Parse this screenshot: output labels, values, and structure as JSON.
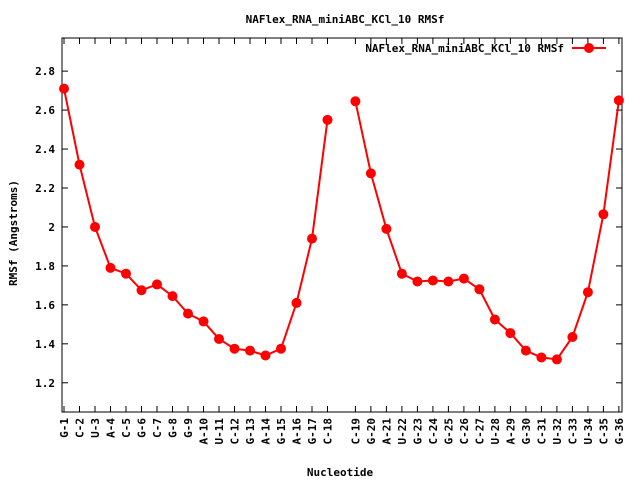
{
  "chart_data": {
    "type": "line",
    "title": "NAFlex_RNA_miniABC_KCl_10 RMSf",
    "xlabel": "Nucleotide",
    "ylabel": "RMSf (Angstroms)",
    "ylim": [
      1.05,
      2.97
    ],
    "yticks": [
      "1.2",
      "1.4",
      "1.6",
      "1.8",
      "2",
      "2.2",
      "2.4",
      "2.6",
      "2.8"
    ],
    "grid": false,
    "legend_position": "top-right",
    "series": [
      {
        "name": "NAFlex_RNA_miniABC_KCl_10 RMSf",
        "color": "#ff0000",
        "segments": [
          {
            "categories": [
              "G-1",
              "C-2",
              "U-3",
              "A-4",
              "C-5",
              "G-6",
              "C-7",
              "G-8",
              "G-9",
              "A-10",
              "U-11",
              "C-12",
              "G-13",
              "A-14",
              "G-15",
              "A-16",
              "G-17",
              "C-18"
            ],
            "values": [
              2.71,
              2.32,
              2.0,
              1.79,
              1.76,
              1.675,
              1.705,
              1.645,
              1.555,
              1.515,
              1.425,
              1.375,
              1.365,
              1.34,
              1.375,
              1.61,
              1.94,
              2.55
            ]
          },
          {
            "categories": [
              "C-19",
              "G-20",
              "A-21",
              "U-22",
              "G-23",
              "C-24",
              "G-25",
              "C-26",
              "C-27",
              "U-28",
              "A-29",
              "G-30",
              "C-31",
              "U-32",
              "C-33",
              "U-34",
              "C-35",
              "G-36"
            ],
            "values": [
              2.645,
              2.275,
              1.99,
              1.76,
              1.72,
              1.725,
              1.72,
              1.735,
              1.68,
              1.525,
              1.455,
              1.365,
              1.33,
              1.32,
              1.435,
              1.665,
              2.065,
              2.65
            ]
          }
        ]
      }
    ]
  }
}
